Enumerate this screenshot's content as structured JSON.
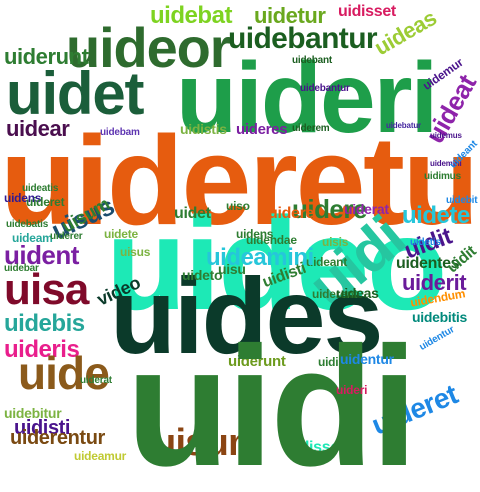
{
  "words": [
    {
      "text": "uidebat",
      "color": "#7ed321"
    },
    {
      "text": "uidetur",
      "color": "#6aa81e"
    },
    {
      "text": "uidisset",
      "color": "#d81b60"
    },
    {
      "text": "uideor",
      "color": "#2e6b2e"
    },
    {
      "text": "uidebantur",
      "color": "#1b5e20"
    },
    {
      "text": "uideas",
      "color": "#9ccc35"
    },
    {
      "text": "uiderunt",
      "color": "#2e7d32"
    },
    {
      "text": "uideri",
      "color": "#1e9e4a"
    },
    {
      "text": "uidet",
      "color": "#1b5e3a"
    },
    {
      "text": "uidemur",
      "color": "#4a148c"
    },
    {
      "text": "uideat",
      "color": "#8e24aa"
    },
    {
      "text": "uidear",
      "color": "#4a0e4e"
    },
    {
      "text": "uidebam",
      "color": "#5e35b1"
    },
    {
      "text": "uidistis",
      "color": "#7cb342"
    },
    {
      "text": "uideres",
      "color": "#7b1fa2"
    },
    {
      "text": "uiderem",
      "color": "#1b5e20"
    },
    {
      "text": "uidebatur",
      "color": "#4527a0"
    },
    {
      "text": "uideretur",
      "color": "#e65c0f"
    },
    {
      "text": "uidens",
      "color": "#311b92"
    },
    {
      "text": "uisus",
      "color": "#1b4d6e"
    },
    {
      "text": "uideo",
      "color": "#1de9b6"
    },
    {
      "text": "uidere",
      "color": "#2e7d32"
    },
    {
      "text": "uiderat",
      "color": "#8e24aa"
    },
    {
      "text": "uidete",
      "color": "#26c6da"
    },
    {
      "text": "uidit",
      "color": "#4a148c"
    },
    {
      "text": "uident",
      "color": "#7b1fa2"
    },
    {
      "text": "uidi",
      "color": "#26c6a0"
    },
    {
      "text": "uides",
      "color": "#0b3a2a"
    },
    {
      "text": "uisa",
      "color": "#7f0a2a"
    },
    {
      "text": "uidebis",
      "color": "#26a69a"
    },
    {
      "text": "uideris",
      "color": "#e91e8c"
    },
    {
      "text": "uide",
      "color": "#8b5a1b"
    },
    {
      "text": "uiderunt",
      "color": "#6d9b1e"
    },
    {
      "text": "uidisti",
      "color": "#4a148c"
    },
    {
      "text": "uidisset",
      "color": "#2e7d32"
    },
    {
      "text": "uidebitur",
      "color": "#7cb342"
    },
    {
      "text": "uiderentur",
      "color": "#7a4a12"
    },
    {
      "text": "uisum",
      "color": "#8b4513"
    },
    {
      "text": "uidisse",
      "color": "#1de9b6"
    },
    {
      "text": "uideret",
      "color": "#1e88e5"
    },
    {
      "text": "uideamur",
      "color": "#c0ca33"
    },
    {
      "text": "uiderit",
      "color": "#6a1b9a"
    },
    {
      "text": "uidentes",
      "color": "#1b5e20"
    },
    {
      "text": "uidendum",
      "color": "#ff8f00"
    },
    {
      "text": "uidebitis",
      "color": "#00897b"
    },
    {
      "text": "uiderent",
      "color": "#2e7d32"
    },
    {
      "text": "uideant",
      "color": "#2e7d32"
    },
    {
      "text": "uidendae",
      "color": "#2e7d32"
    },
    {
      "text": "uisis",
      "color": "#7cb342"
    },
    {
      "text": "uidi",
      "color": "#2e7d32"
    },
    {
      "text": "video",
      "color": "#0b3a2a"
    },
    {
      "text": "uiso",
      "color": "#2e7d32"
    },
    {
      "text": "uisu",
      "color": "#2e7d32"
    },
    {
      "text": "uidet",
      "color": "#2e7d32"
    },
    {
      "text": "uideto",
      "color": "#2e7d32"
    },
    {
      "text": "uidens",
      "color": "#2e7d32"
    },
    {
      "text": "uidere",
      "color": "#e65c0f"
    },
    {
      "text": "uidete",
      "color": "#7cb342"
    },
    {
      "text": "uisus",
      "color": "#7cb342"
    },
    {
      "text": "uidemus",
      "color": "#4a148c"
    },
    {
      "text": "uidebant",
      "color": "#1b5e20"
    },
    {
      "text": "uidemini",
      "color": "#4a148c"
    },
    {
      "text": "uidimus",
      "color": "#2e7d32"
    },
    {
      "text": "uidebit",
      "color": "#1e88e5"
    },
    {
      "text": "uidetis",
      "color": "#1e88e5"
    },
    {
      "text": "uideatis",
      "color": "#2e7d32"
    },
    {
      "text": "uidebar",
      "color": "#2e7d32"
    },
    {
      "text": "uideam",
      "color": "#26a69a"
    },
    {
      "text": "uiderer",
      "color": "#2e7d32"
    },
    {
      "text": "uidebatis",
      "color": "#2e7d32"
    },
    {
      "text": "uiderat",
      "color": "#2e7d32"
    },
    {
      "text": "uideret",
      "color": "#2e7d32"
    },
    {
      "text": "uidentur",
      "color": "#1e88e5"
    },
    {
      "text": "uisum",
      "color": "#2e7d32"
    },
    {
      "text": "uidebantur",
      "color": "#4a148c"
    },
    {
      "text": "uidentur",
      "color": "#1e88e5"
    },
    {
      "text": "uideri",
      "color": "#d81b60"
    },
    {
      "text": "uideas",
      "color": "#1b5e20"
    },
    {
      "text": "uideant",
      "color": "#1e88e5"
    },
    {
      "text": "uideamini",
      "color": "#26c6da"
    },
    {
      "text": "uidit",
      "color": "#2e7d32"
    },
    {
      "text": "uidisti",
      "color": "#2e7d32"
    }
  ]
}
